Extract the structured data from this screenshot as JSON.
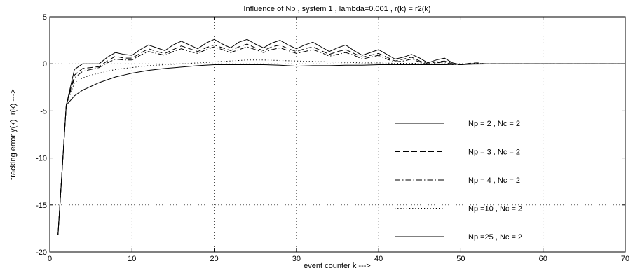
{
  "chart_data": {
    "type": "line",
    "title": "Influence of Np , system 1 , lambda=0.001 , r(k) = r2(k)",
    "xlabel": "event counter k --->",
    "ylabel": "tracking error y(k)−r(k) --->",
    "xlim": [
      0,
      70
    ],
    "ylim": [
      -20,
      5
    ],
    "xticks": [
      0,
      10,
      20,
      30,
      40,
      50,
      60,
      70
    ],
    "yticks": [
      -20,
      -15,
      -10,
      -5,
      0,
      5
    ],
    "grid": true,
    "legend_position": "center-right",
    "series": [
      {
        "name": "Np = 2 , Nc = 2",
        "style": "solid",
        "x": [
          1,
          2,
          3,
          4,
          5,
          6,
          7,
          8,
          9,
          10,
          11,
          12,
          13,
          14,
          15,
          16,
          17,
          18,
          19,
          20,
          21,
          22,
          23,
          24,
          25,
          26,
          27,
          28,
          29,
          30,
          31,
          32,
          33,
          34,
          35,
          36,
          37,
          38,
          39,
          40,
          41,
          42,
          43,
          44,
          45,
          46,
          47,
          48,
          49,
          50,
          51,
          52,
          53,
          54,
          55,
          56,
          57,
          58,
          59,
          60,
          61,
          62,
          63,
          64,
          65,
          66,
          67,
          68,
          69,
          70
        ],
        "y": [
          -18.2,
          -4.4,
          -0.6,
          0,
          0,
          0,
          0.7,
          1.2,
          1.0,
          0.9,
          1.5,
          2.0,
          1.7,
          1.4,
          2.0,
          2.4,
          2.0,
          1.6,
          2.2,
          2.6,
          2.1,
          1.7,
          2.3,
          2.6,
          2.1,
          1.7,
          2.2,
          2.5,
          2.0,
          1.6,
          2.0,
          2.3,
          1.8,
          1.3,
          1.7,
          2.0,
          1.4,
          0.9,
          1.2,
          1.5,
          1.0,
          0.5,
          0.7,
          1.0,
          0.6,
          0.1,
          0.4,
          0.6,
          0.1,
          -0.1,
          -0.05,
          0,
          0,
          0,
          0,
          0,
          0,
          0,
          0,
          0,
          0,
          0,
          0,
          0,
          0,
          0,
          0,
          0,
          0,
          0
        ]
      },
      {
        "name": "Np = 3 , Nc = 2",
        "style": "dashed",
        "x": [
          1,
          2,
          3,
          4,
          5,
          6,
          7,
          8,
          9,
          10,
          11,
          12,
          13,
          14,
          15,
          16,
          17,
          18,
          19,
          20,
          21,
          22,
          23,
          24,
          25,
          26,
          27,
          28,
          29,
          30,
          31,
          32,
          33,
          34,
          35,
          36,
          37,
          38,
          39,
          40,
          41,
          42,
          43,
          44,
          45,
          46,
          47,
          48,
          49,
          50,
          51,
          52,
          53,
          54,
          55,
          56,
          57,
          58,
          59,
          60,
          61,
          62,
          63,
          64,
          65,
          66,
          67,
          68,
          69,
          70
        ],
        "y": [
          -18.2,
          -4.4,
          -1.2,
          -0.5,
          -0.4,
          -0.3,
          0.3,
          0.8,
          0.6,
          0.6,
          1.1,
          1.6,
          1.3,
          1.1,
          1.5,
          1.9,
          1.6,
          1.3,
          1.7,
          2.0,
          1.7,
          1.4,
          1.8,
          2.1,
          1.7,
          1.4,
          1.8,
          2.0,
          1.6,
          1.3,
          1.6,
          1.8,
          1.4,
          1.0,
          1.3,
          1.5,
          1.1,
          0.7,
          0.9,
          1.1,
          0.7,
          0.3,
          0.5,
          0.7,
          0.3,
          0.0,
          0.2,
          0.3,
          0.0,
          -0.1,
          0.05,
          0.1,
          0,
          0,
          0,
          0,
          0,
          0,
          0,
          0,
          0,
          0,
          0,
          0,
          0,
          0,
          0,
          0,
          0,
          0
        ]
      },
      {
        "name": "Np = 4 , Nc = 2",
        "style": "dashdot",
        "x": [
          1,
          2,
          3,
          4,
          5,
          6,
          7,
          8,
          9,
          10,
          11,
          12,
          13,
          14,
          15,
          16,
          17,
          18,
          19,
          20,
          21,
          22,
          23,
          24,
          25,
          26,
          27,
          28,
          29,
          30,
          31,
          32,
          33,
          34,
          35,
          36,
          37,
          38,
          39,
          40,
          41,
          42,
          43,
          44,
          45,
          46,
          47,
          48,
          49,
          50,
          51,
          52,
          53,
          54,
          55,
          56,
          57,
          58,
          59,
          60,
          61,
          62,
          63,
          64,
          65,
          66,
          67,
          68,
          69,
          70
        ],
        "y": [
          -18.2,
          -4.4,
          -1.5,
          -0.8,
          -0.6,
          -0.4,
          0.1,
          0.5,
          0.4,
          0.4,
          0.9,
          1.3,
          1.1,
          0.9,
          1.3,
          1.6,
          1.3,
          1.1,
          1.5,
          1.8,
          1.5,
          1.2,
          1.5,
          1.8,
          1.5,
          1.2,
          1.5,
          1.7,
          1.4,
          1.1,
          1.3,
          1.5,
          1.2,
          0.8,
          1.0,
          1.2,
          0.9,
          0.5,
          0.7,
          0.9,
          0.5,
          0.2,
          0.3,
          0.5,
          0.2,
          -0.1,
          0.1,
          0.2,
          -0.1,
          -0.1,
          0,
          0.05,
          0,
          0,
          0,
          0,
          0,
          0,
          0,
          0,
          0,
          0,
          0,
          0,
          0,
          0,
          0,
          0,
          0,
          0
        ]
      },
      {
        "name": "Np =10 , Nc = 2",
        "style": "dotted",
        "x": [
          1,
          2,
          3,
          4,
          5,
          6,
          7,
          8,
          9,
          10,
          12,
          14,
          16,
          18,
          20,
          22,
          24,
          26,
          28,
          30,
          32,
          34,
          36,
          38,
          40,
          42,
          44,
          46,
          48,
          50,
          52,
          55,
          60,
          65,
          70
        ],
        "y": [
          -18.2,
          -4.4,
          -2.0,
          -1.5,
          -1.2,
          -1.0,
          -0.8,
          -0.6,
          -0.5,
          -0.4,
          -0.2,
          -0.1,
          0.0,
          0.1,
          0.2,
          0.3,
          0.4,
          0.4,
          0.35,
          0.3,
          0.25,
          0.2,
          0.15,
          0.1,
          0.1,
          0.05,
          0.05,
          0,
          0,
          0,
          0,
          0,
          0,
          0,
          0
        ]
      },
      {
        "name": "Np =25 , Nc = 2",
        "style": "solid",
        "x": [
          1,
          2,
          3,
          4,
          5,
          6,
          7,
          8,
          9,
          10,
          12,
          14,
          16,
          18,
          20,
          22,
          24,
          26,
          28,
          30,
          32,
          34,
          36,
          38,
          40,
          42,
          44,
          46,
          48,
          50,
          55,
          60,
          65,
          70
        ],
        "y": [
          -18.2,
          -4.4,
          -3.4,
          -2.8,
          -2.4,
          -2.0,
          -1.7,
          -1.4,
          -1.2,
          -1.0,
          -0.7,
          -0.5,
          -0.35,
          -0.2,
          -0.1,
          -0.1,
          -0.1,
          -0.1,
          -0.15,
          -0.25,
          -0.2,
          -0.2,
          -0.15,
          -0.15,
          -0.1,
          -0.1,
          -0.1,
          -0.1,
          -0.1,
          -0.05,
          0,
          0,
          0,
          0
        ]
      }
    ]
  }
}
